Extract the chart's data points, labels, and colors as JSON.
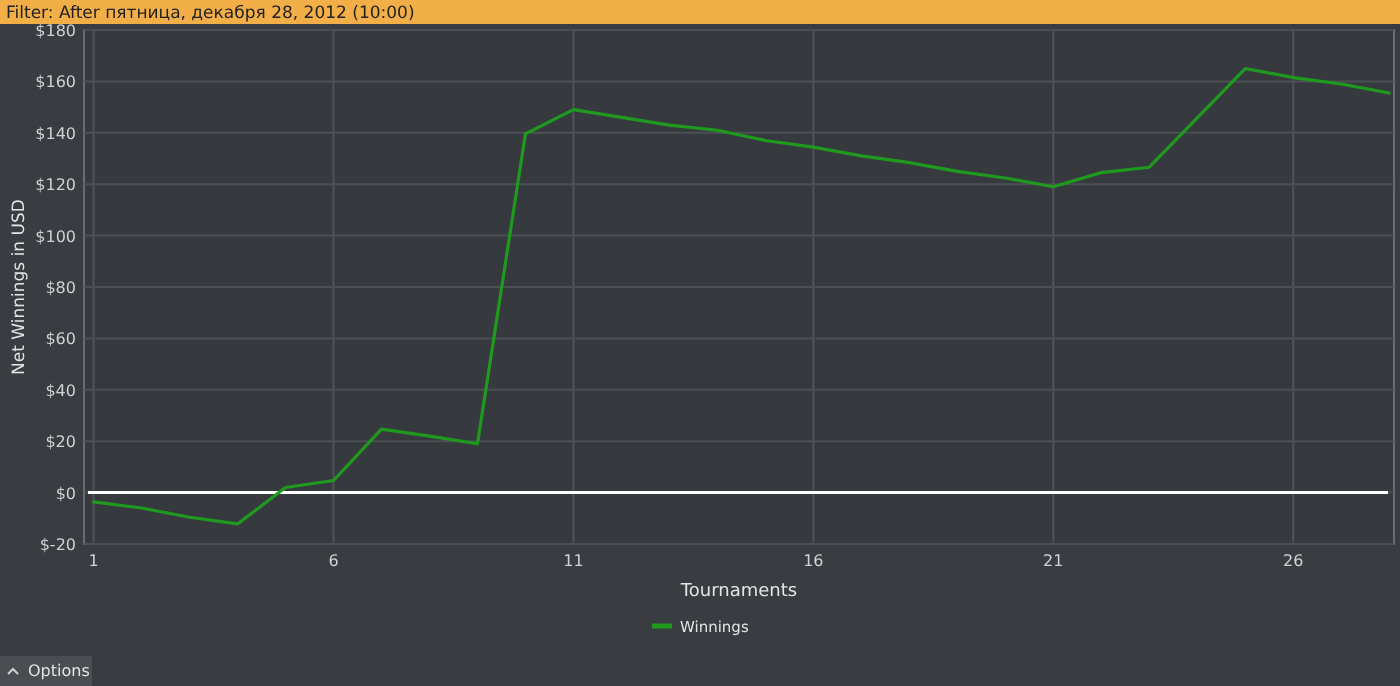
{
  "chart_data": {
    "type": "line",
    "title": "Filter: After пятница, декабря 28, 2012 (10:00)",
    "xlabel": "Tournaments",
    "ylabel": "Net Winnings in USD",
    "x": [
      1,
      2,
      3,
      4,
      5,
      6,
      7,
      8,
      9,
      10,
      11,
      12,
      13,
      14,
      15,
      16,
      17,
      18,
      19,
      20,
      21,
      22,
      23,
      24,
      25,
      26,
      27,
      28
    ],
    "series": [
      {
        "name": "Winnings",
        "color": "#1f9a1f",
        "values": [
          -3.6,
          -6,
          -9.6,
          -12.2,
          2,
          4.7,
          24.7,
          22,
          19,
          139.6,
          149,
          146,
          143,
          141,
          137,
          134.4,
          131,
          128.4,
          125,
          122.4,
          119,
          124.5,
          126.6,
          145.8,
          165,
          161.5,
          159,
          155.5
        ]
      }
    ],
    "xlim": [
      0.8,
      28.1
    ],
    "xticks": [
      1,
      6,
      11,
      16,
      21,
      26
    ],
    "ylim": [
      -20,
      180
    ],
    "yticks": [
      {
        "value": -20,
        "label": "$-20"
      },
      {
        "value": 0,
        "label": "$0"
      },
      {
        "value": 20,
        "label": "$20"
      },
      {
        "value": 40,
        "label": "$40"
      },
      {
        "value": 60,
        "label": "$60"
      },
      {
        "value": 80,
        "label": "$80"
      },
      {
        "value": 100,
        "label": "$100"
      },
      {
        "value": 120,
        "label": "$120"
      },
      {
        "value": 140,
        "label": "$140"
      },
      {
        "value": 160,
        "label": "$160"
      },
      {
        "value": 180,
        "label": "$180"
      }
    ],
    "ref_lines": [
      {
        "axis": "y",
        "value": 0,
        "color": "#ffffff"
      }
    ],
    "grid": true,
    "legend": "bottom",
    "marker": "none",
    "line_style": "solid",
    "annotations": [
      "Options"
    ]
  }
}
